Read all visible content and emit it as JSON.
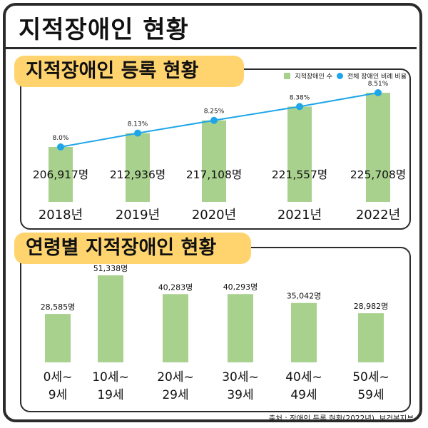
{
  "page": {
    "title": "지적장애인 현황",
    "source": "출처 : 장애인 등록 현황(2022년), 보건복지부"
  },
  "colors": {
    "bar": "#a9d18e",
    "line": "#1ea6e8",
    "title_bg": "#ffd46e",
    "border": "#2b2b2b"
  },
  "chart_data": [
    {
      "type": "bar",
      "title": "지적장애인 등록 현황",
      "categories": [
        "2018년",
        "2019년",
        "2020년",
        "2021년",
        "2022년"
      ],
      "series": [
        {
          "name": "지적장애인 수",
          "values": [
            206917,
            212936,
            217108,
            221557,
            225708
          ],
          "labels": [
            "206,917명",
            "212,936명",
            "217,108명",
            "221,557명",
            "225,708명"
          ]
        },
        {
          "name": "전체 장애인 비례 비율",
          "type": "line",
          "values": [
            8.0,
            8.13,
            8.25,
            8.38,
            8.51
          ],
          "labels": [
            "8.0%",
            "8.13%",
            "8.25%",
            "8.38%",
            "8.51%"
          ]
        }
      ],
      "legend": "top-right"
    },
    {
      "type": "bar",
      "title": "연령별 지적장애인 현황",
      "categories": [
        [
          "0세~",
          "9세"
        ],
        [
          "10세~",
          "19세"
        ],
        [
          "20세~",
          "29세"
        ],
        [
          "30세~",
          "39세"
        ],
        [
          "40세~",
          "49세"
        ],
        [
          "50세~",
          "59세"
        ]
      ],
      "values": [
        28585,
        51338,
        40283,
        40293,
        35042,
        28982
      ],
      "labels": [
        "28,585명",
        "51,338명",
        "40,283명",
        "40,293명",
        "35,042명",
        "28,982명"
      ]
    }
  ]
}
